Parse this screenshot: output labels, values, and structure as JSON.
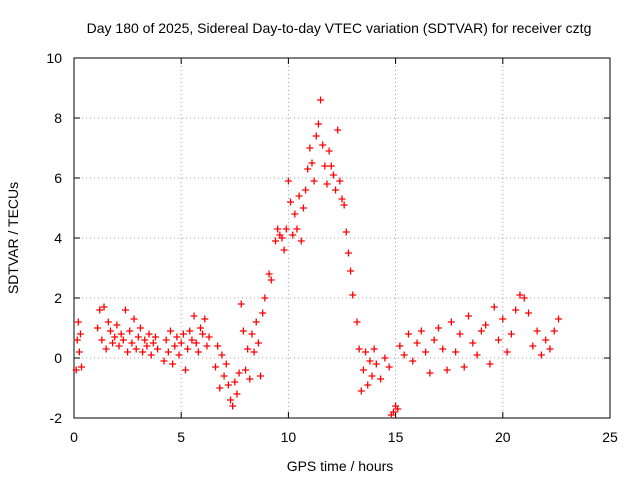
{
  "chart_data": {
    "type": "scatter",
    "title": "Day 180 of 2025, Sidereal Day-to-day VTEC variation (SDTVAR) for receiver cztg",
    "xlabel": "GPS time / hours",
    "ylabel": "SDTVAR / TECUs",
    "xlim": [
      0,
      25
    ],
    "ylim": [
      -2,
      10
    ],
    "xticks": [
      "0",
      "5",
      "10",
      "15",
      "20",
      "25"
    ],
    "yticks": [
      "-2",
      "0",
      "2",
      "4",
      "6",
      "8",
      "10"
    ],
    "grid": true,
    "marker": "plus",
    "color": "#ff0000",
    "series": [
      {
        "name": "SDTVAR",
        "x": [
          0.1,
          0.15,
          0.2,
          0.25,
          0.3,
          0.35,
          1.1,
          1.2,
          1.3,
          1.4,
          1.5,
          1.6,
          1.7,
          1.8,
          1.9,
          2.0,
          2.1,
          2.2,
          2.3,
          2.4,
          2.5,
          2.6,
          2.7,
          2.8,
          2.9,
          3.0,
          3.1,
          3.2,
          3.3,
          3.4,
          3.5,
          3.6,
          3.7,
          3.8,
          3.9,
          4.2,
          4.3,
          4.4,
          4.5,
          4.6,
          4.7,
          4.8,
          4.9,
          5.0,
          5.1,
          5.2,
          5.3,
          5.4,
          5.5,
          5.6,
          5.7,
          5.8,
          5.9,
          6.0,
          6.1,
          6.2,
          6.3,
          6.6,
          6.7,
          6.8,
          6.9,
          7.0,
          7.1,
          7.2,
          7.3,
          7.4,
          7.5,
          7.6,
          7.7,
          7.8,
          7.9,
          8.0,
          8.1,
          8.2,
          8.3,
          8.4,
          8.5,
          8.6,
          8.7,
          8.8,
          8.9,
          9.1,
          9.2,
          9.4,
          9.5,
          9.6,
          9.7,
          9.8,
          9.9,
          10.0,
          10.1,
          10.2,
          10.3,
          10.4,
          10.5,
          10.6,
          10.7,
          10.8,
          10.9,
          11.0,
          11.1,
          11.2,
          11.3,
          11.4,
          11.5,
          11.6,
          11.7,
          11.8,
          11.9,
          12.0,
          12.1,
          12.2,
          12.3,
          12.4,
          12.5,
          12.6,
          12.7,
          12.8,
          12.9,
          13.0,
          13.2,
          13.3,
          13.4,
          13.5,
          13.6,
          13.7,
          13.8,
          13.9,
          14.0,
          14.1,
          14.3,
          14.5,
          14.7,
          14.8,
          14.9,
          15.0,
          15.1,
          15.2,
          15.4,
          15.6,
          15.8,
          16.0,
          16.2,
          16.4,
          16.6,
          16.8,
          17.0,
          17.2,
          17.4,
          17.6,
          17.8,
          18.0,
          18.2,
          18.4,
          18.6,
          18.8,
          19.0,
          19.2,
          19.4,
          19.6,
          19.8,
          20.0,
          20.2,
          20.4,
          20.6,
          20.8,
          21.0,
          21.2,
          21.4,
          21.6,
          21.8,
          22.0,
          22.2,
          22.4,
          22.6
        ],
        "y": [
          -0.4,
          0.6,
          1.2,
          0.2,
          0.8,
          -0.3,
          1.0,
          1.6,
          0.6,
          1.7,
          0.3,
          1.2,
          0.9,
          0.5,
          0.7,
          1.1,
          0.4,
          0.8,
          0.6,
          1.6,
          0.2,
          0.9,
          0.5,
          1.3,
          0.3,
          0.7,
          1.0,
          0.2,
          0.6,
          0.4,
          0.8,
          0.1,
          0.5,
          0.7,
          0.3,
          -0.1,
          0.6,
          0.2,
          0.9,
          -0.2,
          0.4,
          0.7,
          0.1,
          0.5,
          0.8,
          -0.4,
          0.3,
          0.9,
          0.6,
          1.4,
          0.5,
          0.2,
          1.0,
          0.8,
          1.3,
          0.4,
          0.7,
          -0.3,
          0.4,
          -1.0,
          0.1,
          -0.6,
          -0.2,
          -0.9,
          -1.4,
          -1.6,
          -0.8,
          -1.2,
          -0.5,
          1.8,
          0.9,
          -0.4,
          0.3,
          -0.7,
          0.8,
          0.2,
          1.2,
          0.5,
          -0.6,
          1.5,
          2.0,
          2.8,
          2.6,
          3.9,
          4.3,
          4.1,
          4.0,
          3.6,
          4.3,
          5.9,
          5.2,
          4.1,
          4.8,
          4.3,
          5.4,
          3.9,
          5.0,
          5.6,
          6.3,
          7.0,
          6.5,
          5.9,
          7.4,
          7.8,
          8.6,
          7.1,
          6.4,
          5.8,
          6.9,
          6.4,
          6.1,
          5.6,
          7.6,
          5.9,
          5.3,
          5.1,
          4.2,
          3.5,
          2.9,
          2.1,
          1.2,
          0.3,
          -1.1,
          -0.4,
          0.2,
          -0.9,
          -0.1,
          -0.6,
          0.3,
          -0.2,
          -0.7,
          0.0,
          -0.3,
          -1.9,
          -1.8,
          -1.6,
          -1.7,
          0.4,
          0.1,
          0.8,
          -0.1,
          0.5,
          0.9,
          0.2,
          -0.5,
          0.6,
          1.0,
          0.3,
          -0.4,
          1.2,
          0.2,
          0.8,
          -0.3,
          1.4,
          0.5,
          0.1,
          0.9,
          1.1,
          -0.2,
          1.7,
          0.6,
          1.3,
          0.2,
          0.8,
          1.6,
          2.1,
          2.0,
          1.5,
          0.4,
          0.9,
          0.1,
          0.6,
          0.3,
          0.9,
          1.3
        ]
      }
    ]
  }
}
